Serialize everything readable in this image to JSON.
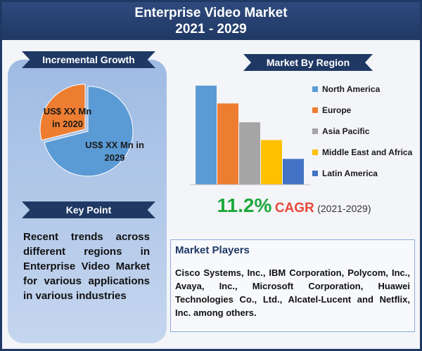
{
  "header": {
    "title": "Enterprise Video Market",
    "subtitle": "2021 - 2029"
  },
  "incremental_growth": {
    "heading": "Incremental Growth"
  },
  "key_point": {
    "heading": "Key Point",
    "text": "Recent trends across different regions in Enterprise Video Market for various applications in various industries"
  },
  "market_by_region": {
    "heading": "Market By Region"
  },
  "cagr": {
    "value": "11.2%",
    "label": "CAGR",
    "period": "(2021-2029)"
  },
  "market_players": {
    "heading": "Market Players",
    "text": "Cisco Systems, Inc., IBM Corporation, Polycom, Inc., Avaya, Inc., Microsoft Corporation, Huawei Technologies Co., Ltd., Alcatel-Lucent and Netflix, Inc. among others."
  },
  "chart_data": [
    {
      "type": "pie",
      "values": [
        29,
        71
      ],
      "colors": [
        "#ed7d31",
        "#5b9bd5"
      ],
      "labels": [
        [
          "US$ XX Mn",
          "in 2020"
        ],
        [
          "US$ XX Mn in",
          "2029"
        ]
      ]
    },
    {
      "type": "bar",
      "categories": [
        "North America",
        "Europe",
        "Asia Pacific",
        "Middle East and Africa",
        "Latin America"
      ],
      "values": [
        100,
        82,
        63,
        45,
        26
      ],
      "colors": [
        "#5b9bd5",
        "#ed7d31",
        "#a5a5a5",
        "#ffc000",
        "#4472c4"
      ],
      "ylim": [
        0,
        100
      ],
      "legend": "right"
    }
  ]
}
